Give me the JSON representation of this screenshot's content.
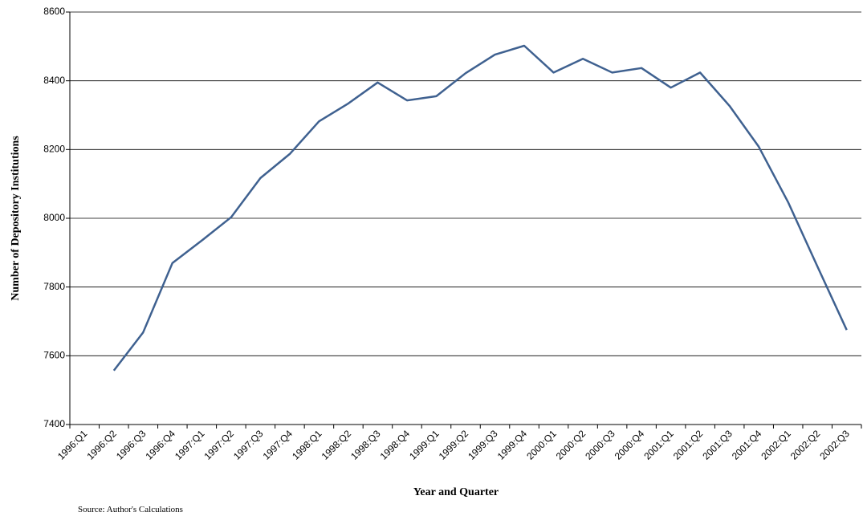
{
  "chart_data": {
    "type": "line",
    "x_label": "Year and Quarter",
    "y_label": "Number of Depository Institutions",
    "source": "Source: Author's Calculations",
    "categories": [
      "1996:Q1",
      "1996:Q2",
      "1996:Q3",
      "1996:Q4",
      "1997:Q1",
      "1997:Q2",
      "1997:Q3",
      "1997:Q4",
      "1998:Q1",
      "1998:Q2",
      "1998:Q3",
      "1998:Q4",
      "1999:Q1",
      "1999:Q2",
      "1999:Q3",
      "1999:Q4",
      "2000:Q1",
      "2000:Q2",
      "2000:Q3",
      "2000:Q4",
      "2001:Q1",
      "2001:Q2",
      "2001:Q3",
      "2001:Q4",
      "2002:Q1",
      "2002:Q2",
      "2002:Q3"
    ],
    "values": [
      null,
      7557,
      7668,
      7870,
      7935,
      8003,
      8117,
      8187,
      8282,
      8334,
      8395,
      8343,
      8355,
      8422,
      8476,
      8502,
      8424,
      8464,
      8424,
      8437,
      8380,
      8424,
      8327,
      8208,
      8047,
      7860,
      7675
    ],
    "color": "#3f6190",
    "ylim": [
      7400,
      8600
    ],
    "yticks": [
      7400,
      7600,
      7800,
      8000,
      8200,
      8400,
      8600
    ],
    "grid": true
  }
}
